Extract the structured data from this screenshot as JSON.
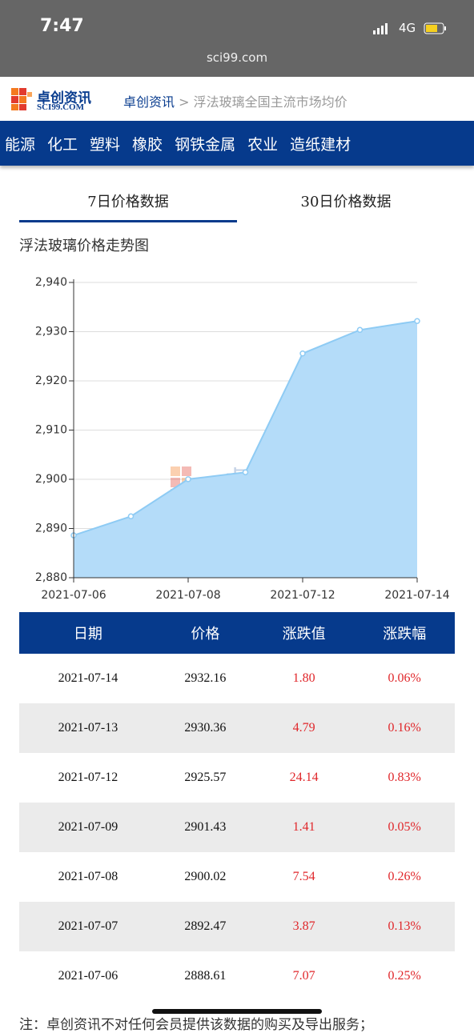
{
  "status_bar": {
    "time": "7:47",
    "network": "4G"
  },
  "url": "sci99.com",
  "header": {
    "logo_cn": "卓创资讯",
    "logo_en": "SCI99.COM",
    "breadcrumb_home": "卓创资讯",
    "breadcrumb_sep": ">",
    "breadcrumb_current": "浮法玻璃全国主流市场均价"
  },
  "nav": [
    "能源",
    "化工",
    "塑料",
    "橡胶",
    "钢铁金属",
    "农业",
    "造纸建材"
  ],
  "tabs": [
    "7日价格数据",
    "30日价格数据"
  ],
  "chart_data": {
    "type": "area",
    "title": "浮法玻璃价格走势图",
    "watermark": [
      "卓创资讯",
      "SCI99.COM"
    ],
    "categories": [
      "2021-07-06",
      null,
      "2021-07-08",
      null,
      "2021-07-12",
      null,
      "2021-07-14"
    ],
    "values": [
      2888.61,
      2892.47,
      2900.02,
      2901.43,
      2925.57,
      2930.36,
      2932.16
    ],
    "color": "#b4dcf9",
    "line_color": "#8ecbf4",
    "ylim": [
      2880,
      2940
    ],
    "yticks": [
      {
        "value": 2880,
        "label": "2,880"
      },
      {
        "value": 2890,
        "label": "2,890"
      },
      {
        "value": 2900,
        "label": "2,900"
      },
      {
        "value": 2910,
        "label": "2,910"
      },
      {
        "value": 2920,
        "label": "2,920"
      },
      {
        "value": 2930,
        "label": "2,930"
      },
      {
        "value": 2940,
        "label": "2,940"
      }
    ],
    "grid": true
  },
  "table": {
    "columns": [
      "日期",
      "价格",
      "涨跌值",
      "涨跌幅"
    ],
    "rows": [
      [
        "2021-07-14",
        "2932.16",
        "1.80",
        "0.06%"
      ],
      [
        "2021-07-13",
        "2930.36",
        "4.79",
        "0.16%"
      ],
      [
        "2021-07-12",
        "2925.57",
        "24.14",
        "0.83%"
      ],
      [
        "2021-07-09",
        "2901.43",
        "1.41",
        "0.05%"
      ],
      [
        "2021-07-08",
        "2900.02",
        "7.54",
        "0.26%"
      ],
      [
        "2021-07-07",
        "2892.47",
        "3.87",
        "0.13%"
      ],
      [
        "2021-07-06",
        "2888.61",
        "7.07",
        "0.25%"
      ]
    ]
  },
  "footer_note": "注：卓创资讯不对任何会员提供该数据的购买及导出服务；"
}
